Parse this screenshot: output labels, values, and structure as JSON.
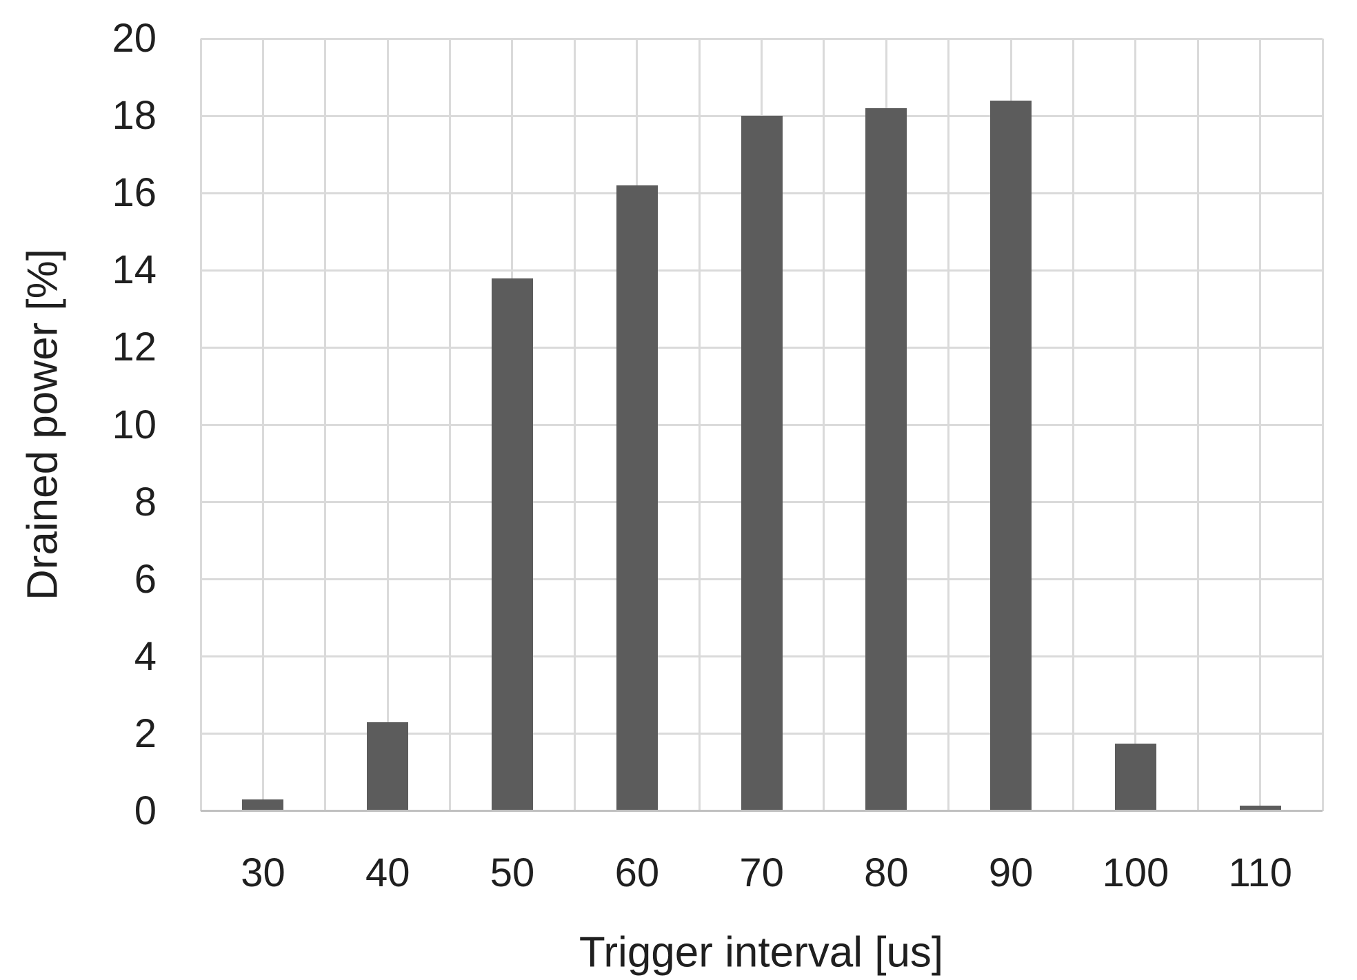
{
  "chart_data": {
    "type": "bar",
    "xlabel": "Trigger interval [us]",
    "ylabel": "Drained power [%]",
    "categories": [
      "30",
      "40",
      "50",
      "60",
      "70",
      "80",
      "90",
      "100",
      "110"
    ],
    "values": [
      0.3,
      2.3,
      13.8,
      16.2,
      18.0,
      18.2,
      18.4,
      1.75,
      0.15
    ],
    "ylim": [
      0,
      20
    ],
    "yticks": [
      0,
      2,
      4,
      6,
      8,
      10,
      12,
      14,
      16,
      18,
      20
    ],
    "grid": "horizontal-and-vertical",
    "legend": "none",
    "colors": {
      "bar": "#5c5c5c",
      "gridline": "#dadada",
      "axis_line": "#c0c0c0",
      "text": "#1f1f1f",
      "background": "#ffffff"
    }
  }
}
